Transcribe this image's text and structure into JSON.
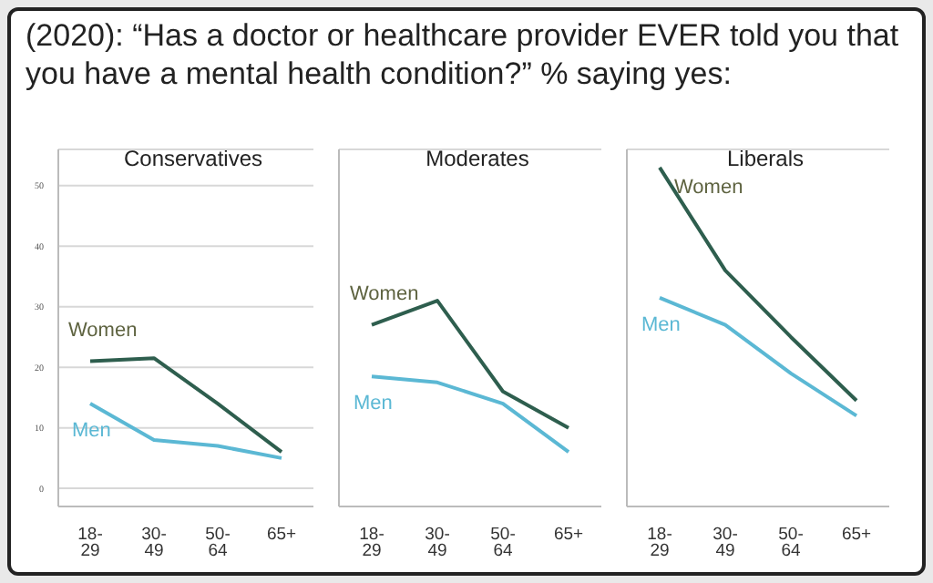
{
  "chart_data": [
    {
      "type": "line",
      "title": "Conservatives",
      "annotations": [
        "(2020): “Has a doctor or healthcare provider EVER told you that you have a mental health condition?” % saying yes:"
      ],
      "categories": [
        "18-\n29",
        "30-\n49",
        "50-\n64",
        "65+"
      ],
      "ylim": [
        -3,
        56
      ],
      "yticks": [
        0,
        10,
        20,
        30,
        40,
        50
      ],
      "grid": "y",
      "series": [
        {
          "name": "Women",
          "color": "#2e5e4e",
          "values": [
            21,
            21.5,
            14,
            6
          ]
        },
        {
          "name": "Men",
          "color": "#5bb8d4",
          "values": [
            14,
            8,
            7,
            5
          ]
        }
      ]
    },
    {
      "type": "line",
      "title": "Moderates",
      "categories": [
        "18-\n29",
        "30-\n49",
        "50-\n64",
        "65+"
      ],
      "ylim": [
        -3,
        56
      ],
      "yticks": [
        0,
        10,
        20,
        30,
        40,
        50
      ],
      "grid": "y",
      "tick_labels": "x",
      "series": [
        {
          "name": "Women",
          "color": "#2e5e4e",
          "values": [
            27,
            31,
            16,
            10
          ]
        },
        {
          "name": "Men",
          "color": "#5bb8d4",
          "values": [
            18.5,
            17.5,
            14,
            6
          ]
        }
      ]
    },
    {
      "type": "line",
      "title": "Liberals",
      "categories": [
        "18-\n29",
        "30-\n49",
        "50-\n64",
        "65+"
      ],
      "ylim": [
        -3,
        56
      ],
      "yticks": [
        0,
        10,
        20,
        30,
        40,
        50
      ],
      "grid": "y",
      "tick_labels": "x",
      "series": [
        {
          "name": "Women",
          "color": "#2e5e4e",
          "values": [
            53,
            36,
            25,
            14.5
          ]
        },
        {
          "name": "Men",
          "color": "#5bb8d4",
          "values": [
            31.5,
            27,
            19,
            12
          ]
        }
      ]
    }
  ]
}
